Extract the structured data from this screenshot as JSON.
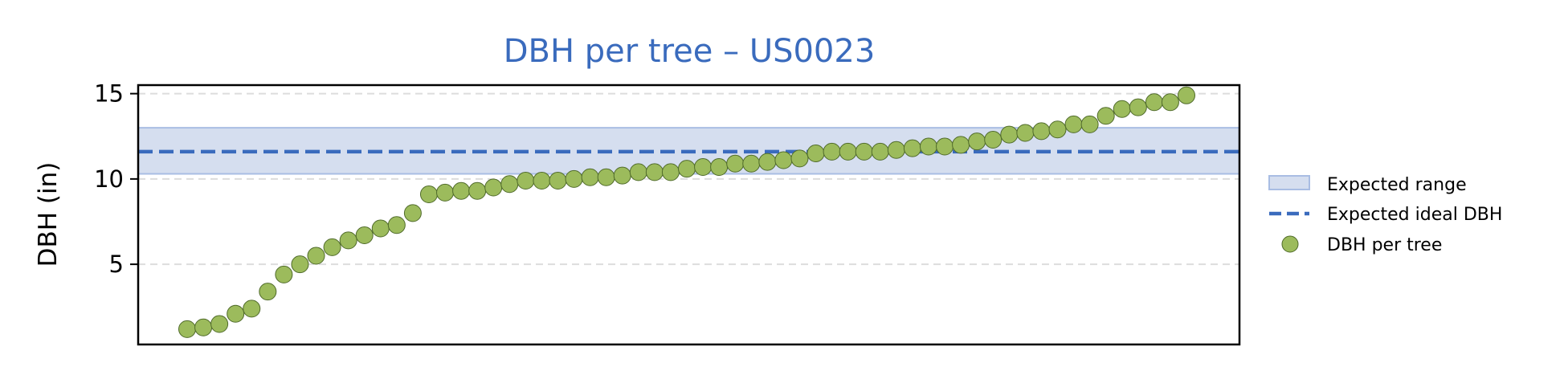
{
  "colors": {
    "title": "#3a6bbd",
    "band_fill": "#d5deef",
    "band_edge": "#a9bde3",
    "ideal_line": "#3a6bbd",
    "point_fill": "#9cbb5c",
    "point_edge": "#4f6a2a",
    "grid": "#dddddd"
  },
  "chart_data": {
    "type": "scatter",
    "title": "DBH per tree – US0023",
    "xlabel": "",
    "ylabel": "DBH (in)",
    "ylim": [
      0.3,
      15.5
    ],
    "yticks": [
      5,
      10,
      15
    ],
    "grid": "y, dashed",
    "legend_position": "right",
    "expected_range": [
      10.3,
      13.0
    ],
    "expected_ideal": 11.6,
    "series": [
      {
        "name": "DBH per tree",
        "values": [
          1.2,
          1.3,
          1.5,
          2.1,
          2.4,
          3.4,
          4.4,
          5.0,
          5.5,
          6.0,
          6.4,
          6.7,
          7.1,
          7.3,
          8.0,
          9.1,
          9.2,
          9.3,
          9.3,
          9.5,
          9.7,
          9.9,
          9.9,
          9.9,
          10.0,
          10.1,
          10.1,
          10.2,
          10.4,
          10.4,
          10.4,
          10.6,
          10.7,
          10.7,
          10.9,
          10.9,
          11.0,
          11.1,
          11.2,
          11.5,
          11.6,
          11.6,
          11.6,
          11.6,
          11.7,
          11.8,
          11.9,
          11.9,
          12.0,
          12.2,
          12.3,
          12.6,
          12.7,
          12.8,
          12.9,
          13.2,
          13.2,
          13.7,
          14.1,
          14.2,
          14.5,
          14.5,
          14.9
        ]
      }
    ],
    "legend": [
      "Expected range",
      "Expected ideal DBH",
      "DBH per tree"
    ]
  }
}
